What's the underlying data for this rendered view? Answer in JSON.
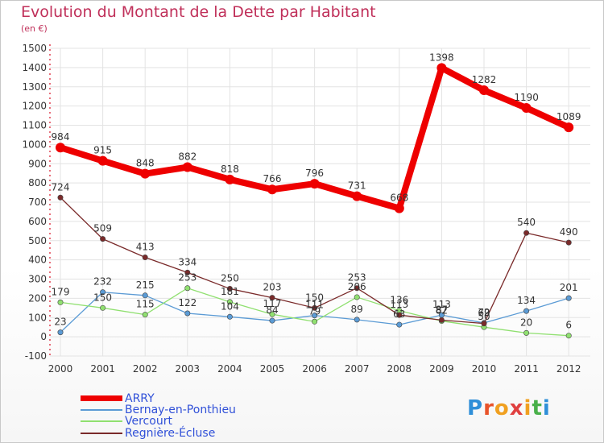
{
  "title": "Evolution du Montant de la Dette par Habitant",
  "unit": "(en €)",
  "logo": {
    "text": "Proxiti",
    "colors": [
      "#2f8fd8",
      "#e8532a",
      "#f0a020",
      "#e04040",
      "#f0a020",
      "#49b04a",
      "#2f8fd8"
    ]
  },
  "chart_data": {
    "type": "line",
    "x": [
      "2000",
      "2001",
      "2002",
      "2003",
      "2004",
      "2005",
      "2006",
      "2007",
      "2008",
      "2009",
      "2010",
      "2011",
      "2012"
    ],
    "ylim": [
      -100,
      1500
    ],
    "yticks": [
      "-100",
      "0",
      "100",
      "200",
      "300",
      "400",
      "500",
      "600",
      "700",
      "800",
      "900",
      "1000",
      "1100",
      "1200",
      "1300",
      "1400",
      "1500"
    ],
    "grid": true,
    "legend_position": "bottom-left",
    "series": [
      {
        "name": "ARRY",
        "color": "#ee0000",
        "width": 8,
        "values": [
          984,
          915,
          848,
          882,
          818,
          766,
          796,
          731,
          668,
          1398,
          1282,
          1190,
          1089
        ],
        "labels": [
          "984",
          "915",
          "848",
          "882",
          "818",
          "766",
          "796",
          "731",
          "668",
          "1398",
          "1282",
          "1190",
          "1089"
        ]
      },
      {
        "name": "Bernay-en-Ponthieu",
        "color": "#5b9bd5",
        "width": 1.3,
        "values": [
          23,
          232,
          215,
          122,
          104,
          84,
          111,
          89,
          63,
          113,
          72,
          134,
          201
        ],
        "labels": [
          "23",
          "232",
          "215",
          "122",
          "104",
          "84",
          "111",
          "89",
          "63",
          "113",
          "72",
          "134",
          "201"
        ]
      },
      {
        "name": "Vercourt",
        "color": "#90e070",
        "width": 1.3,
        "values": [
          179,
          150,
          115,
          253,
          181,
          117,
          79,
          206,
          136,
          82,
          50,
          20,
          6
        ],
        "labels": [
          "179",
          "150",
          "115",
          "253",
          "181",
          "117",
          "79",
          "206",
          "136",
          "82",
          "50",
          "20",
          "6"
        ]
      },
      {
        "name": "Regnière-Écluse",
        "color": "#7a2a2a",
        "width": 1.3,
        "values": [
          724,
          509,
          413,
          334,
          250,
          203,
          150,
          253,
          113,
          87,
          69,
          540,
          490
        ],
        "labels": [
          "724",
          "509",
          "413",
          "334",
          "250",
          "203",
          "150",
          "253",
          "113",
          "87",
          "69",
          "540",
          "490"
        ]
      }
    ]
  }
}
